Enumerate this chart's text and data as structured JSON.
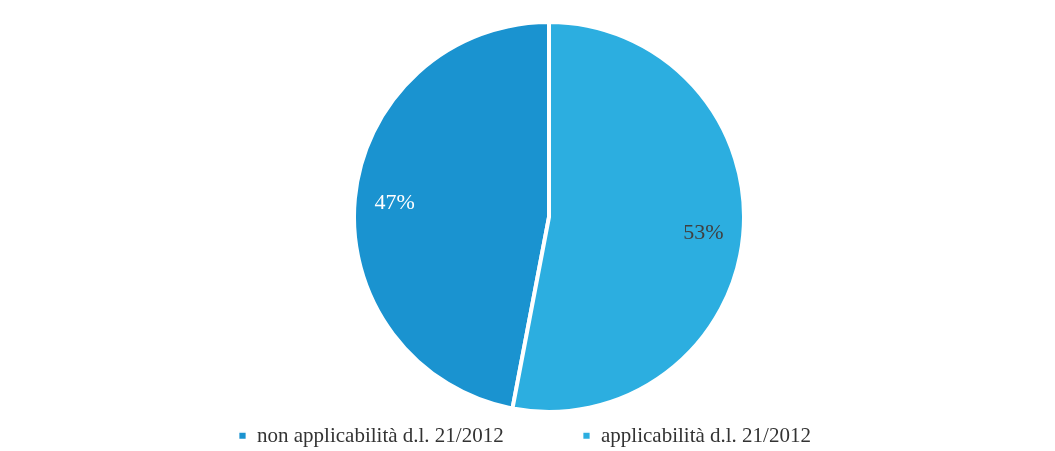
{
  "chart_data": {
    "type": "pie",
    "categories": [
      "non applicabilità d.l. 21/2012",
      "applicabilità d.l. 21/2012"
    ],
    "values": [
      47,
      53
    ],
    "colors": [
      "#1a93d0",
      "#2caee0"
    ],
    "value_labels": [
      "47%",
      "53%"
    ],
    "legend": "bottom"
  }
}
